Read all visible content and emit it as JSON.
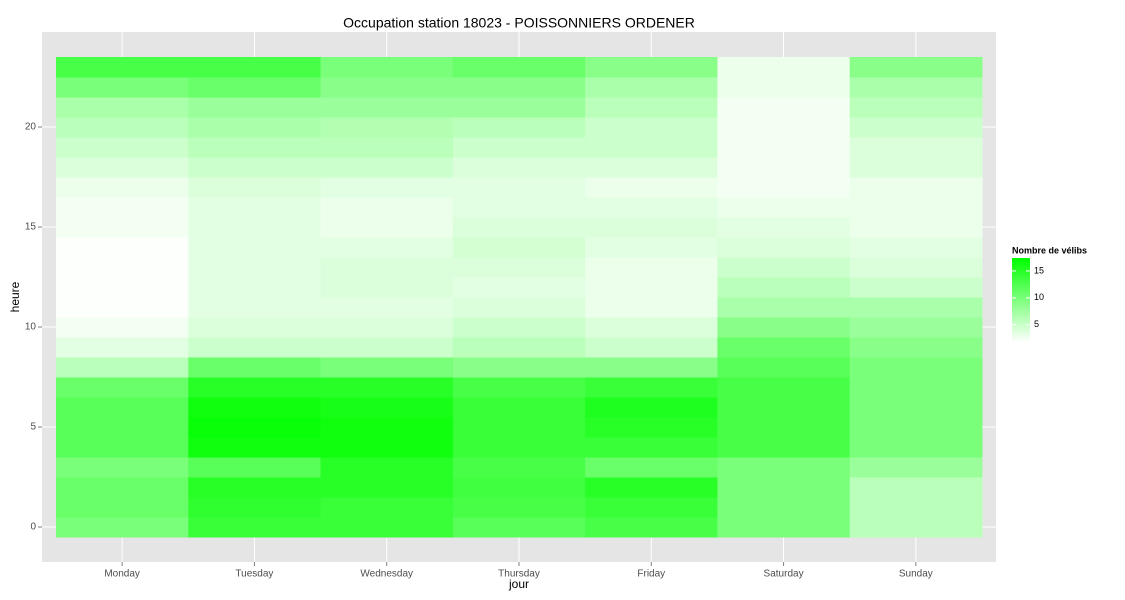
{
  "chart_data": {
    "type": "heatmap",
    "title": "Occupation station 18023 - POISSONNIERS ORDENER",
    "x_label": "jour",
    "y_label": "heure",
    "categories": [
      "Monday",
      "Tuesday",
      "Wednesday",
      "Thursday",
      "Friday",
      "Saturday",
      "Sunday"
    ],
    "y": [
      0,
      1,
      2,
      3,
      4,
      5,
      6,
      7,
      8,
      9,
      10,
      11,
      12,
      13,
      14,
      15,
      16,
      17,
      18,
      19,
      20,
      21,
      22,
      23
    ],
    "values": [
      [
        10,
        11,
        11,
        10,
        12,
        12,
        12,
        11,
        6,
        3.5,
        2.5,
        2,
        2,
        2,
        2,
        2.5,
        2.5,
        3,
        4,
        5,
        6,
        7,
        10,
        13
      ],
      [
        14,
        14.5,
        15,
        12,
        16.5,
        17,
        16.5,
        15,
        11,
        5,
        4,
        3.5,
        3.5,
        3.5,
        3.5,
        3.5,
        3.5,
        4,
        5,
        6,
        7,
        8,
        11,
        13
      ],
      [
        14,
        14,
        15,
        15,
        16.5,
        16.5,
        16,
        15,
        10,
        5,
        4,
        3.5,
        4,
        4,
        3.5,
        3,
        3,
        3.5,
        5,
        6,
        6.5,
        8,
        9,
        10
      ],
      [
        12,
        13,
        13.5,
        13,
        14,
        14,
        14,
        13,
        9,
        6,
        5,
        4,
        3.5,
        4,
        4.5,
        4,
        3.5,
        3.5,
        4,
        5,
        6,
        8,
        9,
        11
      ],
      [
        13,
        14,
        15,
        11,
        14,
        15,
        15.5,
        14,
        9,
        5,
        4,
        3,
        3,
        3,
        3.5,
        4,
        3.5,
        3,
        4,
        5,
        5,
        6,
        7,
        9
      ],
      [
        10,
        10,
        10,
        10,
        13,
        13,
        13,
        13,
        12,
        11,
        9,
        7,
        6,
        5,
        4,
        3.5,
        3,
        2.5,
        2.5,
        2.5,
        2.5,
        2.5,
        3,
        3
      ],
      [
        6,
        6,
        6,
        8,
        10,
        10,
        10,
        10,
        10,
        9,
        8,
        7,
        5,
        4,
        3.5,
        3,
        3,
        3,
        4,
        4,
        5,
        6,
        7,
        9
      ]
    ],
    "ylim": [
      -1.75,
      24.75
    ],
    "yticks": [
      0,
      5,
      10,
      15,
      20
    ],
    "grid": true,
    "legend_title": "Nombre de vélibs",
    "legend_position": "right",
    "clim": [
      1.8,
      17.4
    ],
    "cticks": [
      5,
      10,
      15
    ],
    "low_color": "#ffffff",
    "high_color": "#00ff00"
  }
}
